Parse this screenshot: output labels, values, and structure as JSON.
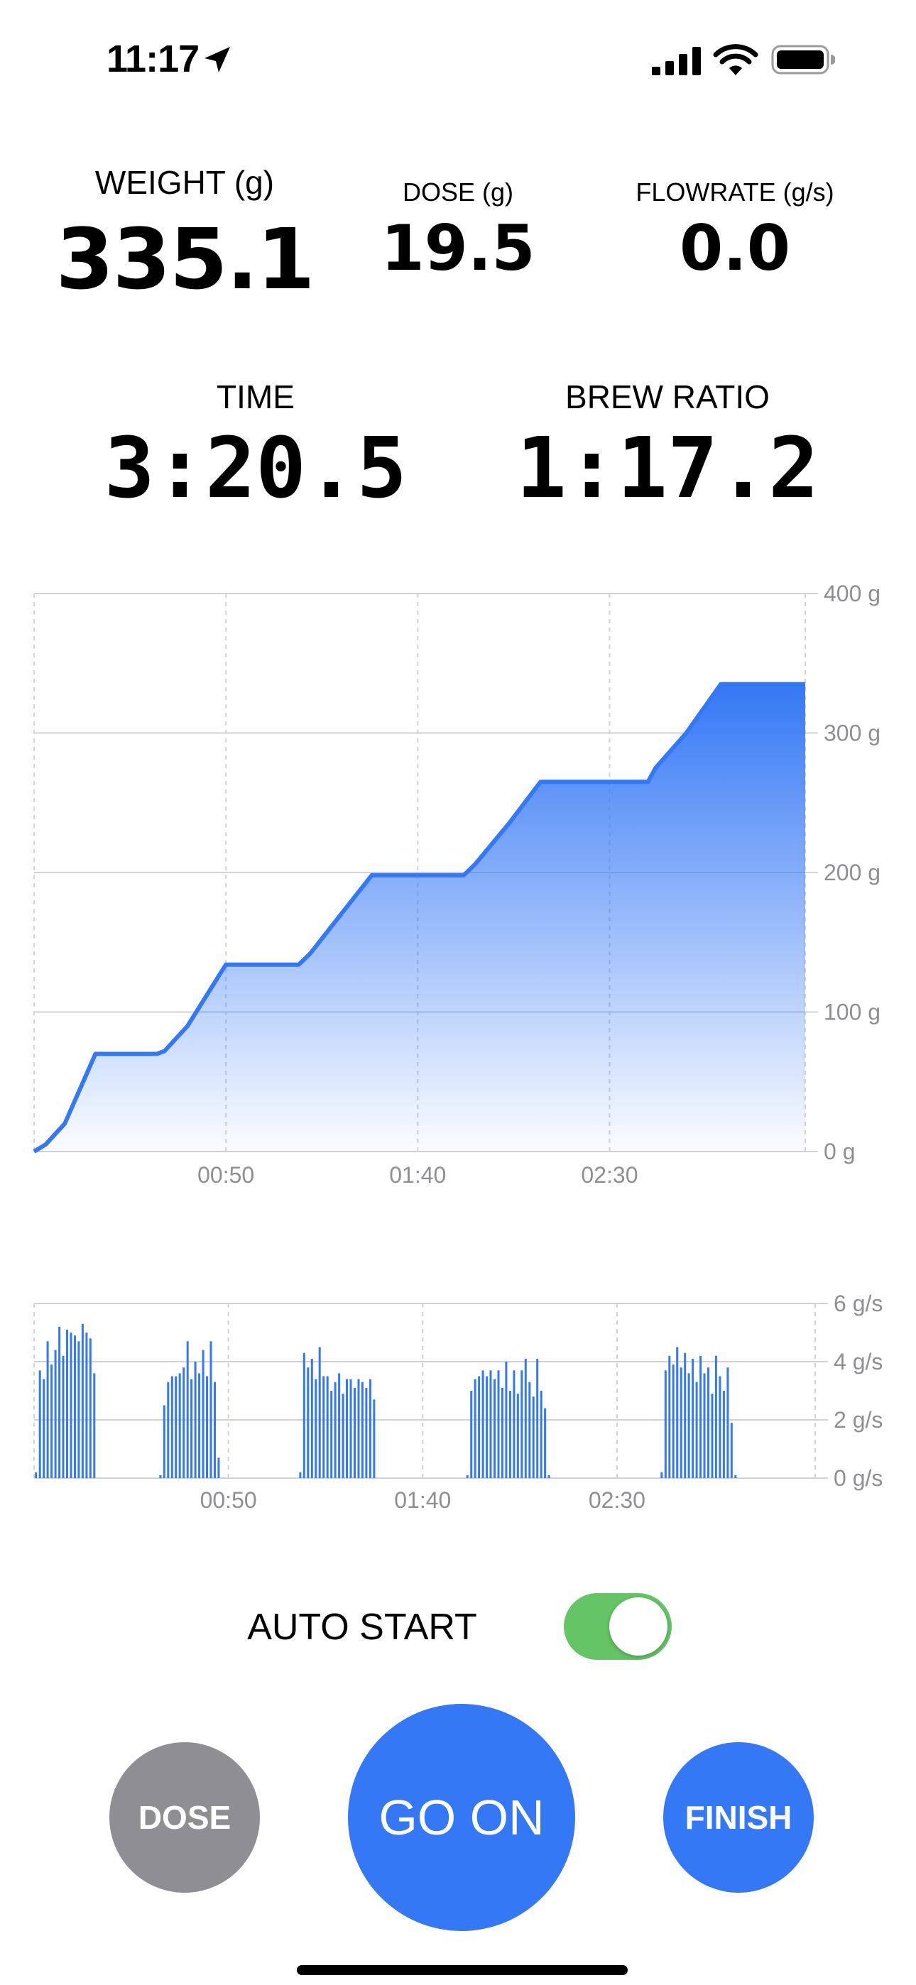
{
  "status_bar": {
    "time": "11:17",
    "icons": [
      "location-arrow-icon",
      "cellular-signal-icon",
      "wifi-icon",
      "battery-icon"
    ]
  },
  "metrics": {
    "weight": {
      "label": "WEIGHT (g)",
      "value": "335.1"
    },
    "dose": {
      "label": "DOSE (g)",
      "value": "19.5"
    },
    "flowrate": {
      "label": "FLOWRATE (g/s)",
      "value": "0.0"
    },
    "time": {
      "label": "TIME",
      "value": "3:20.5"
    },
    "brew_ratio": {
      "label": "BREW RATIO",
      "value": "1:17.2"
    }
  },
  "auto_start": {
    "label": "AUTO START",
    "enabled": true
  },
  "buttons": {
    "dose": "DOSE",
    "go_on": "GO ON",
    "finish": "FINISH"
  },
  "colors": {
    "accent": "#3478f6",
    "toggle_on": "#65c466",
    "dose_button": "#8e8e93",
    "grid": "#d1d1d6",
    "axis_text": "#8e8e93"
  },
  "chart_data": [
    {
      "type": "area",
      "xlabel": "",
      "ylabel": "",
      "xlim": [
        0,
        201
      ],
      "ylim": [
        0,
        400
      ],
      "x_ticks": [
        {
          "value": 50,
          "label": "00:50"
        },
        {
          "value": 100,
          "label": "01:40"
        },
        {
          "value": 150,
          "label": "02:30"
        }
      ],
      "y_ticks": [
        {
          "value": 0,
          "label": "0 g"
        },
        {
          "value": 100,
          "label": "100 g"
        },
        {
          "value": 200,
          "label": "200 g"
        },
        {
          "value": 300,
          "label": "300 g"
        },
        {
          "value": 400,
          "label": "400 g"
        }
      ],
      "grid": true,
      "series": [
        {
          "x": [
            0,
            3,
            8,
            16,
            32,
            34,
            40,
            50,
            52,
            69,
            72,
            80,
            88,
            112,
            115,
            124,
            132,
            160,
            162,
            170,
            179,
            201
          ],
          "y": [
            0,
            5,
            20,
            70,
            70,
            72,
            90,
            134,
            134,
            134,
            142,
            170,
            198,
            198,
            206,
            236,
            265,
            265,
            275,
            300,
            335,
            335
          ]
        }
      ]
    },
    {
      "type": "bar",
      "xlabel": "",
      "ylabel": "",
      "xlim": [
        0,
        201
      ],
      "ylim": [
        0,
        6
      ],
      "x_ticks": [
        {
          "value": 50,
          "label": "00:50"
        },
        {
          "value": 100,
          "label": "01:40"
        },
        {
          "value": 150,
          "label": "02:30"
        }
      ],
      "y_ticks": [
        {
          "value": 0,
          "label": "0 g/s"
        },
        {
          "value": 2,
          "label": "2 g/s"
        },
        {
          "value": 4,
          "label": "4 g/s"
        },
        {
          "value": 6,
          "label": "6 g/s"
        }
      ],
      "grid": true,
      "series": [
        {
          "x": [
            0.5,
            1.5,
            2.5,
            3.5,
            4.5,
            5.5,
            6.5,
            7.5,
            8.5,
            9.5,
            10.5,
            11.5,
            12.5,
            13.5,
            14.5,
            15.5,
            32.5,
            33.5,
            34.5,
            35.5,
            36.5,
            37.5,
            38.5,
            39.5,
            40.5,
            41.5,
            42.5,
            43.5,
            44.5,
            45.5,
            46.5,
            47.5,
            48.5,
            49.5,
            50.5,
            68.5,
            69.5,
            70.5,
            71.5,
            72.5,
            73.5,
            74.5,
            75.5,
            76.5,
            77.5,
            78.5,
            79.5,
            80.5,
            81.5,
            82.5,
            83.5,
            84.5,
            85.5,
            86.5,
            87.5,
            111.5,
            112.5,
            113.5,
            114.5,
            115.5,
            116.5,
            117.5,
            118.5,
            119.5,
            120.5,
            121.5,
            122.5,
            123.5,
            124.5,
            125.5,
            126.5,
            127.5,
            128.5,
            129.5,
            130.5,
            131.5,
            132.5,
            161.5,
            162.5,
            163.5,
            164.5,
            165.5,
            166.5,
            167.5,
            168.5,
            169.5,
            170.5,
            171.5,
            172.5,
            173.5,
            174.5,
            175.5,
            176.5,
            177.5,
            178.5,
            179.5,
            180.5
          ],
          "values": [
            0.2,
            3.7,
            3.4,
            4.7,
            3.9,
            4.4,
            5.2,
            4.2,
            5.1,
            5.0,
            4.9,
            4.7,
            5.3,
            5.0,
            4.8,
            3.6,
            0.1,
            2.5,
            3.3,
            3.5,
            3.5,
            3.6,
            3.8,
            4.7,
            3.4,
            4.0,
            3.6,
            4.4,
            3.5,
            4.7,
            3.3,
            0.7,
            0,
            0,
            0,
            0.2,
            4.3,
            3.8,
            4.1,
            3.4,
            4.5,
            3.5,
            3.5,
            3.0,
            3.3,
            3.6,
            2.9,
            3.4,
            3.4,
            3.1,
            3.4,
            3.3,
            3.1,
            3.4,
            2.7,
            0.1,
            3.0,
            3.4,
            3.5,
            3.7,
            3.5,
            3.7,
            3.4,
            3.7,
            3.1,
            4.0,
            3.0,
            3.7,
            2.9,
            3.7,
            4.1,
            3.3,
            2.8,
            4.1,
            3.0,
            2.4,
            0.1,
            0.2,
            3.7,
            4.2,
            3.9,
            4.5,
            3.8,
            4.3,
            3.6,
            4.1,
            3.3,
            4.2,
            3.6,
            3.8,
            2.9,
            4.2,
            3.5,
            3.0,
            3.8,
            1.9,
            0.1
          ]
        }
      ]
    }
  ]
}
